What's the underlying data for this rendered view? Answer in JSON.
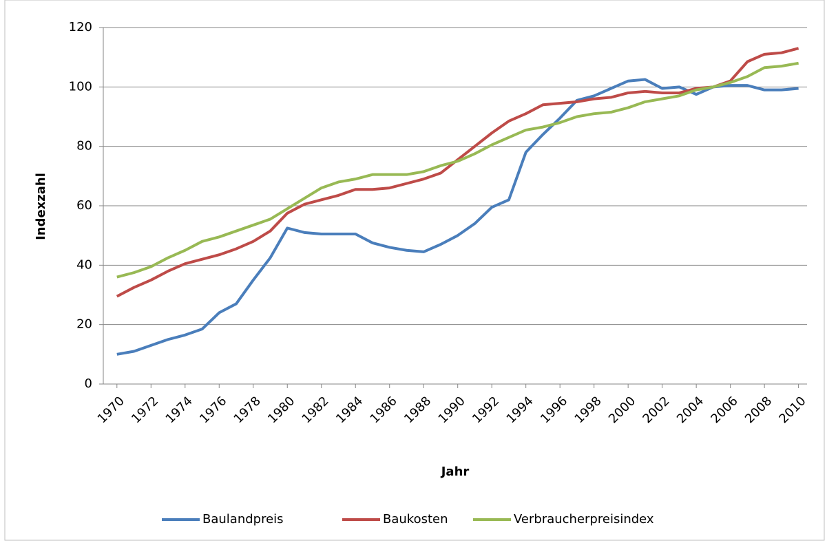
{
  "chart_data": {
    "type": "line",
    "x_label": "Jahr",
    "y_label": "Indexzahl",
    "x": [
      1970,
      1971,
      1972,
      1973,
      1974,
      1975,
      1976,
      1977,
      1978,
      1979,
      1980,
      1981,
      1982,
      1983,
      1984,
      1985,
      1986,
      1987,
      1988,
      1989,
      1990,
      1991,
      1992,
      1993,
      1994,
      1995,
      1996,
      1997,
      1998,
      1999,
      2000,
      2001,
      2002,
      2003,
      2004,
      2005,
      2006,
      2007,
      2008,
      2009,
      2010
    ],
    "series": [
      {
        "name": "Baulandpreis",
        "color": "#4a7ebb",
        "values": [
          10,
          11,
          13,
          15,
          16.5,
          18.5,
          24,
          27,
          35,
          42.5,
          52.5,
          51,
          50.5,
          50.5,
          50.5,
          47.5,
          46,
          45,
          44.5,
          47,
          50,
          54,
          59.5,
          62,
          78,
          84,
          89.5,
          95.5,
          97,
          99.5,
          102,
          102.5,
          99.5,
          100,
          97.5,
          100,
          100.5,
          100.5,
          99,
          99,
          99.5
        ]
      },
      {
        "name": "Baukosten",
        "color": "#be4b48",
        "values": [
          29.5,
          32.5,
          35,
          38,
          40.5,
          42,
          43.5,
          45.5,
          48,
          51.5,
          57.5,
          60.5,
          62,
          63.5,
          65.5,
          65.5,
          66,
          67.5,
          69,
          71,
          75.5,
          80,
          84.5,
          88.5,
          91,
          94,
          94.5,
          95,
          96,
          96.5,
          98,
          98.5,
          98,
          98,
          99.5,
          100,
          102,
          108.5,
          111,
          111.5,
          113
        ]
      },
      {
        "name": "Verbraucherpreisindex",
        "color": "#98b954",
        "values": [
          36,
          37.5,
          39.5,
          42.5,
          45,
          48,
          49.5,
          51.5,
          53.5,
          55.5,
          59,
          62.5,
          66,
          68,
          69,
          70.5,
          70.5,
          70.5,
          71.5,
          73.5,
          75,
          77.5,
          80.5,
          83,
          85.5,
          86.5,
          88,
          90,
          91,
          91.5,
          93,
          95,
          96,
          97,
          99,
          100,
          101.5,
          103.5,
          106.5,
          107,
          108
        ]
      }
    ],
    "xlim": [
      1969.2,
      2010.5
    ],
    "xticks": [
      1970,
      1972,
      1974,
      1976,
      1978,
      1980,
      1982,
      1984,
      1986,
      1988,
      1990,
      1992,
      1994,
      1996,
      1998,
      2000,
      2002,
      2004,
      2006,
      2008,
      2010
    ],
    "ylim": [
      0,
      120
    ],
    "yticks": [
      0,
      20,
      40,
      60,
      80,
      100,
      120
    ],
    "grid": true,
    "legend": "bottom"
  }
}
